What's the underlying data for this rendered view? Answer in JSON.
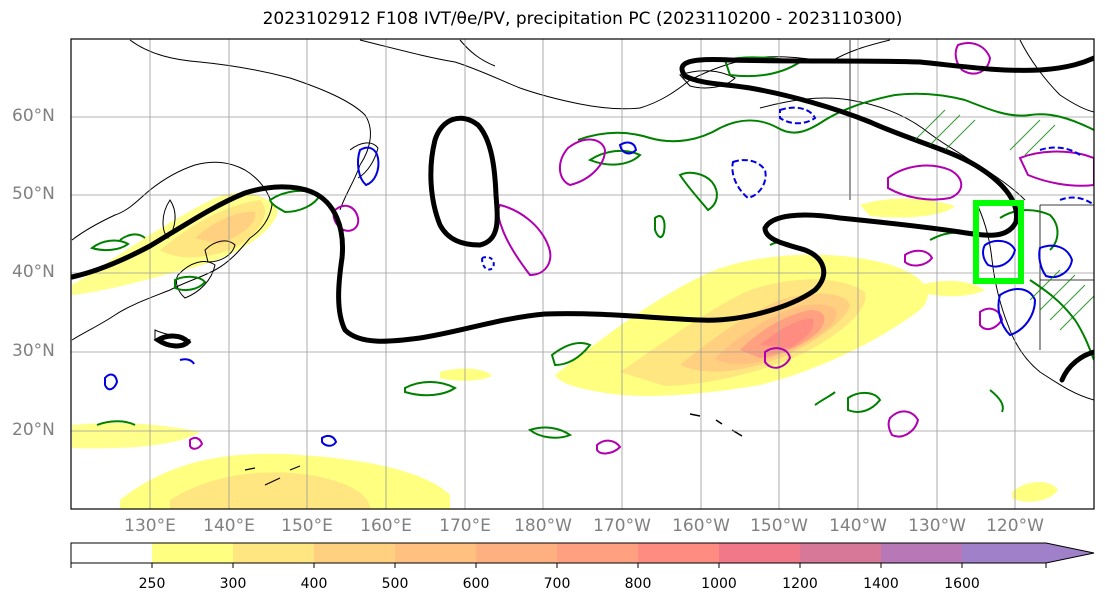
{
  "title": "2023102912 F108 IVT/θe/PV, precipitation PC (2023110200 - 2023110300)",
  "lat_labels": [
    "60°N",
    "50°N",
    "40°N",
    "30°N",
    "20°N"
  ],
  "lon_labels": [
    "130°E",
    "140°E",
    "150°E",
    "160°E",
    "170°E",
    "180°W",
    "170°W",
    "160°W",
    "150°W",
    "140°W",
    "130°W",
    "120°W"
  ],
  "colorbar": {
    "ticks": [
      "250",
      "300",
      "400",
      "500",
      "600",
      "700",
      "800",
      "1000",
      "1200",
      "1400",
      "1600"
    ],
    "colors": [
      "#ffffff",
      "#ffff80",
      "#ffe680",
      "#ffd080",
      "#ffc080",
      "#ffb080",
      "#ffa080",
      "#ff8c80",
      "#f07888",
      "#d87898",
      "#b878b8",
      "#a080c8"
    ]
  },
  "colors": {
    "theta_e_contour": "#000000",
    "pv_positive": "#b000b0",
    "pv_negative": "#0000e0",
    "precip_contour": "#008000",
    "target_box": "#00ff00"
  }
}
